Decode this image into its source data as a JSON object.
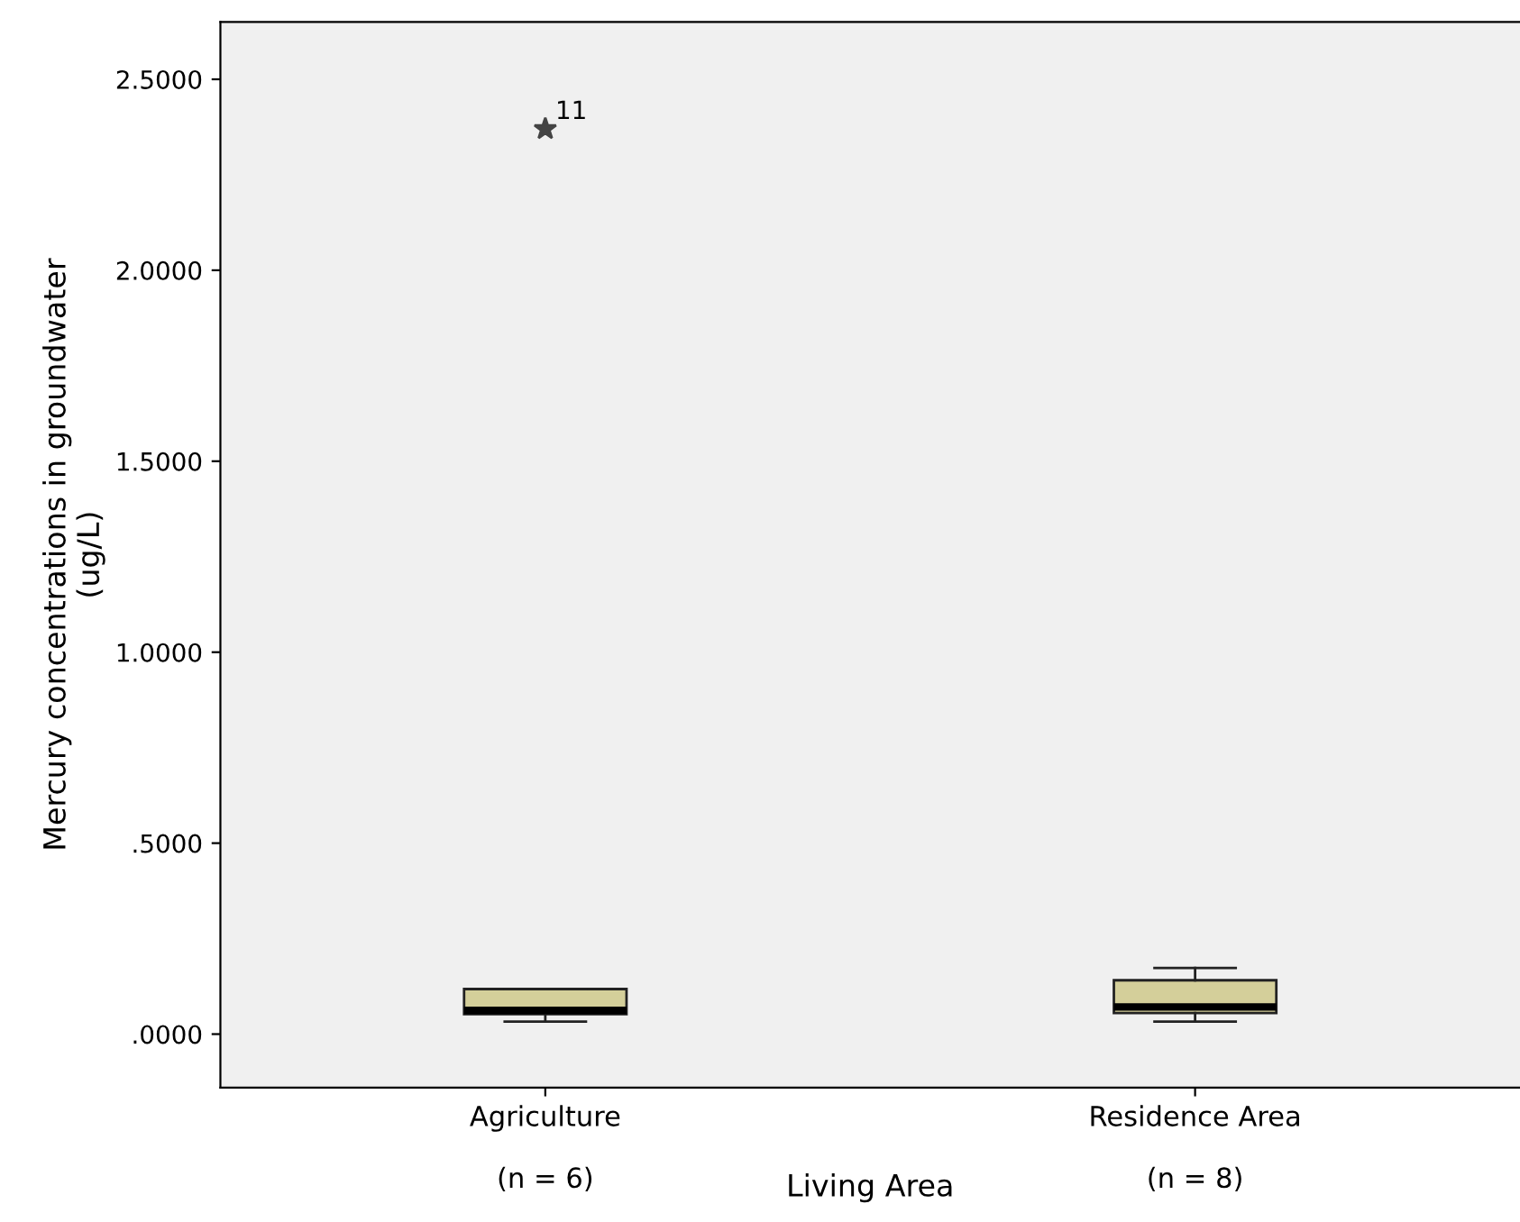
{
  "chart_data": {
    "type": "box",
    "xlabel": "Living Area",
    "ylabel": "Mercury concentrations in groundwater\n(ug/L)",
    "categories": [
      "Agriculture\n\n(n = 6)",
      "Residence Area\n\n(n = 8)"
    ],
    "boxes": [
      {
        "low": 0.033,
        "q1": 0.052,
        "median": 0.062,
        "q3": 0.118,
        "high": 0.118,
        "outliers": [
          2.37
        ]
      },
      {
        "low": 0.033,
        "q1": 0.055,
        "median": 0.071,
        "q3": 0.141,
        "high": 0.173
      }
    ],
    "color": "#d4cf9a",
    "ylim": [
      -0.14,
      2.65
    ],
    "yticks": [
      {
        "value": 0,
        "label": ".0000"
      },
      {
        "value": 0.5,
        "label": ".5000"
      },
      {
        "value": 1,
        "label": "1.0000"
      },
      {
        "value": 1.5,
        "label": "1.5000"
      },
      {
        "value": 2,
        "label": "2.0000"
      },
      {
        "value": 2.5,
        "label": "2.5000"
      }
    ],
    "annotations": [
      "11"
    ],
    "grid": false
  }
}
